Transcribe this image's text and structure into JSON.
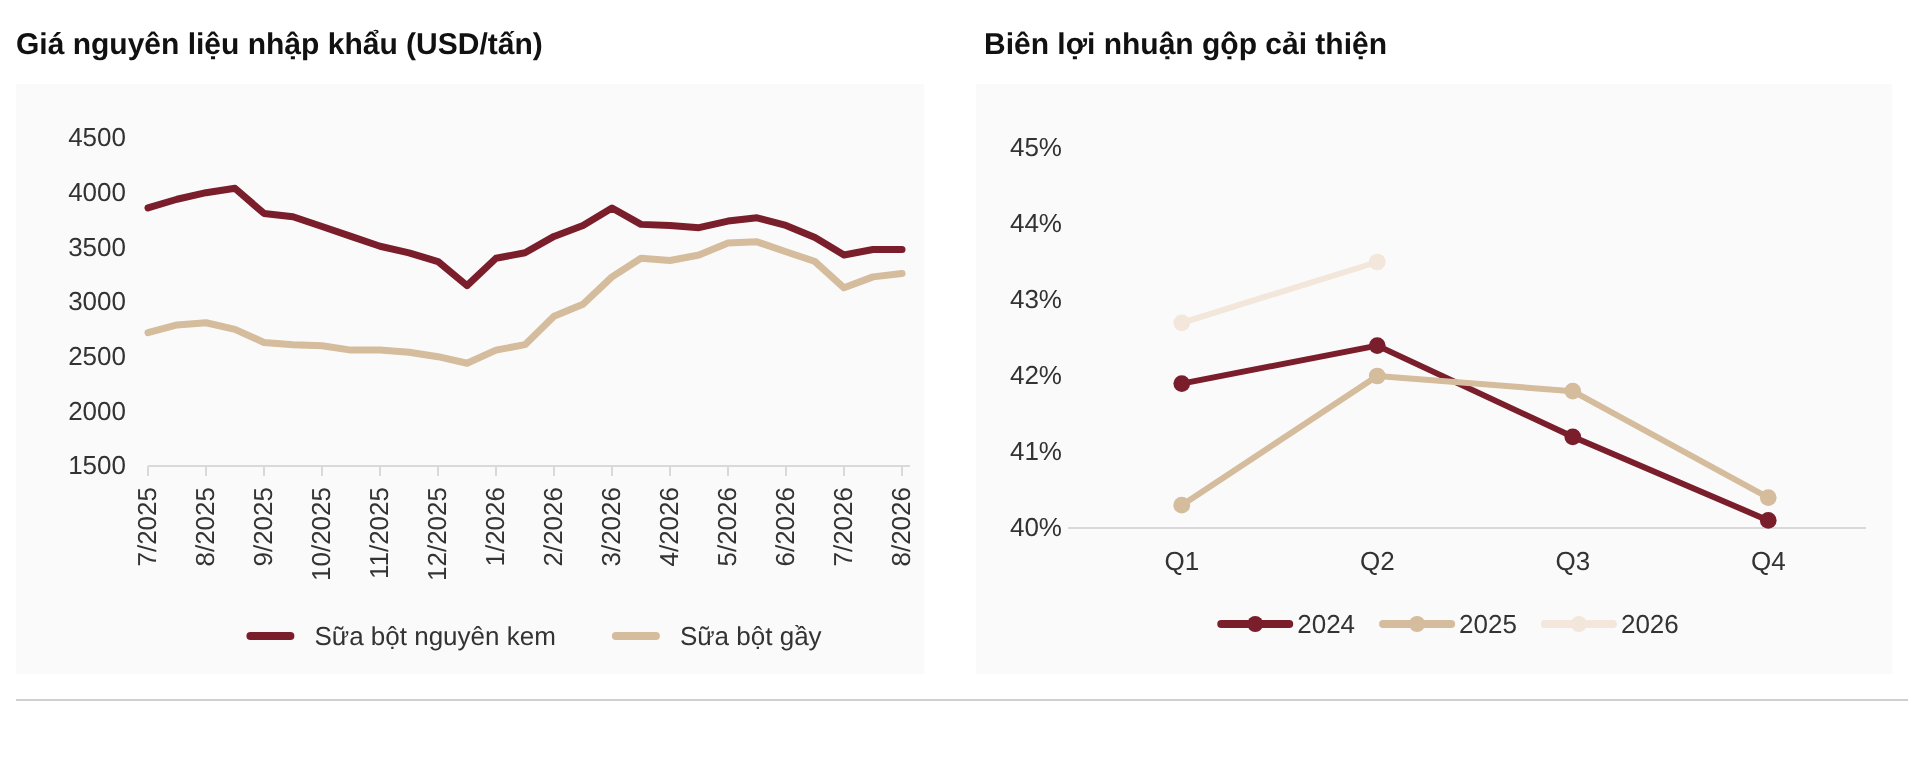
{
  "chart_data": [
    {
      "type": "line",
      "title": "Giá nguyên liệu nhập khẩu (USD/tấn)",
      "categories": [
        "7/2025",
        null,
        "8/2025",
        null,
        "9/2025",
        null,
        "10/2025",
        null,
        "11/2025",
        null,
        "12/2025",
        null,
        "1/2026",
        null,
        "2/2026",
        null,
        "3/2026",
        null,
        "4/2026",
        null,
        "5/2026",
        null,
        "6/2026",
        null,
        "7/2026",
        null,
        "8/2026"
      ],
      "series": [
        {
          "name": "Sữa bột nguyên kem",
          "color": "#7b1e2c",
          "values": [
            3860,
            3940,
            4000,
            4040,
            3810,
            3780,
            3690,
            3600,
            3510,
            3450,
            3370,
            3150,
            3400,
            3450,
            3600,
            3700,
            3860,
            3710,
            3700,
            3680,
            3740,
            3770,
            3700,
            3590,
            3430,
            3480,
            3480
          ]
        },
        {
          "name": "Sữa bột gầy",
          "color": "#d4bc9c",
          "values": [
            2720,
            2790,
            2810,
            2750,
            2630,
            2610,
            2600,
            2560,
            2560,
            2540,
            2500,
            2440,
            2560,
            2610,
            2870,
            2980,
            3230,
            3400,
            3380,
            3430,
            3540,
            3550,
            3460,
            3370,
            3130,
            3230,
            3260
          ]
        }
      ],
      "ylim": [
        1500,
        4500
      ],
      "yticks": [
        1500,
        2000,
        2500,
        3000,
        3500,
        4000,
        4500
      ],
      "legend": "bottom",
      "marker": "none",
      "grid": false
    },
    {
      "type": "line",
      "title": "Biên lợi nhuận gộp cải thiện",
      "categories": [
        "Q1",
        "Q2",
        "Q3",
        "Q4"
      ],
      "series": [
        {
          "name": "2024",
          "color": "#7b1e2c",
          "values": [
            41.9,
            42.4,
            41.2,
            40.1
          ]
        },
        {
          "name": "2025",
          "color": "#d4bc9c",
          "values": [
            40.3,
            42.0,
            41.8,
            40.4
          ]
        },
        {
          "name": "2026",
          "color": "#f3e6da",
          "values": [
            42.7,
            43.5,
            null,
            null
          ]
        }
      ],
      "ylim": [
        40,
        45
      ],
      "yticks": [
        {
          "value": 40,
          "label": "40%"
        },
        {
          "value": 41,
          "label": "41%"
        },
        {
          "value": 42,
          "label": "42%"
        },
        {
          "value": 43,
          "label": "43%"
        },
        {
          "value": 44,
          "label": "44%"
        },
        {
          "value": 45,
          "label": "45%"
        }
      ],
      "legend": "bottom",
      "marker": "circle",
      "grid": false
    }
  ]
}
